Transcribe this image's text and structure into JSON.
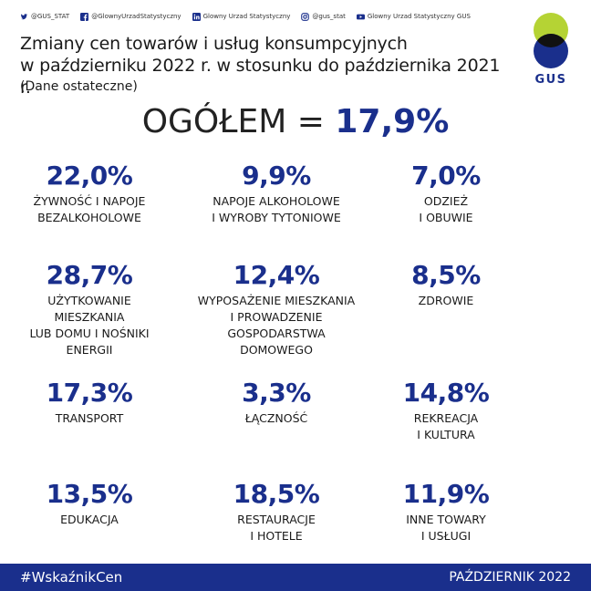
{
  "social": [
    {
      "icon": "twitter-icon",
      "label": "@GUS_STAT"
    },
    {
      "icon": "facebook-icon",
      "label": "@GlownyUrzadStatystyczny"
    },
    {
      "icon": "linkedin-icon",
      "label": "Glowny Urzad Statystyczny"
    },
    {
      "icon": "instagram-icon",
      "label": "@gus_stat"
    },
    {
      "icon": "youtube-icon",
      "label": "Glowny Urzad Statystyczny GUS"
    }
  ],
  "title_line1": "Zmiany cen towarów i usług konsumpcyjnych",
  "title_line2": "w październiku 2022 r. w stosunku do października 2021 r.",
  "subtitle": "(Dane ostateczne)",
  "logo": {
    "text": "GUS",
    "colors": {
      "green": "#b5d334",
      "blue": "#1a2f8c",
      "black": "#111111"
    }
  },
  "overall": {
    "label": "OGÓŁEM = ",
    "value": "17,9%"
  },
  "categories": [
    {
      "value": "22,0%",
      "label": "ŻYWNOŚĆ I NAPOJE\nBEZALKOHOLOWE"
    },
    {
      "value": "9,9%",
      "label": "NAPOJE ALKOHOLOWE\nI WYROBY TYTONIOWE"
    },
    {
      "value": "7,0%",
      "label": "ODZIEŻ\nI OBUWIE"
    },
    {
      "value": "28,7%",
      "label": "UŻYTKOWANIE\nMIESZKANIA\nLUB DOMU I NOŚNIKI\nENERGII"
    },
    {
      "value": "12,4%",
      "label": "WYPOSAŻENIE MIESZKANIA\nI PROWADZENIE\nGOSPODARSTWA\nDOMOWEGO"
    },
    {
      "value": "8,5%",
      "label": "ZDROWIE"
    },
    {
      "value": "17,3%",
      "label": "TRANSPORT"
    },
    {
      "value": "3,3%",
      "label": "ŁĄCZNOŚĆ"
    },
    {
      "value": "14,8%",
      "label": "REKREACJA\nI KULTURA"
    },
    {
      "value": "13,5%",
      "label": "EDUKACJA"
    },
    {
      "value": "18,5%",
      "label": "RESTAURACJE\nI HOTELE"
    },
    {
      "value": "11,9%",
      "label": "INNE TOWARY\nI USŁUGI"
    }
  ],
  "footer": {
    "hashtag": "#WskaźnikCen",
    "date": "PAŹDZIERNIK 2022"
  },
  "colors": {
    "accent": "#1a2f8c",
    "footer_bg": "#1a2f8c"
  }
}
